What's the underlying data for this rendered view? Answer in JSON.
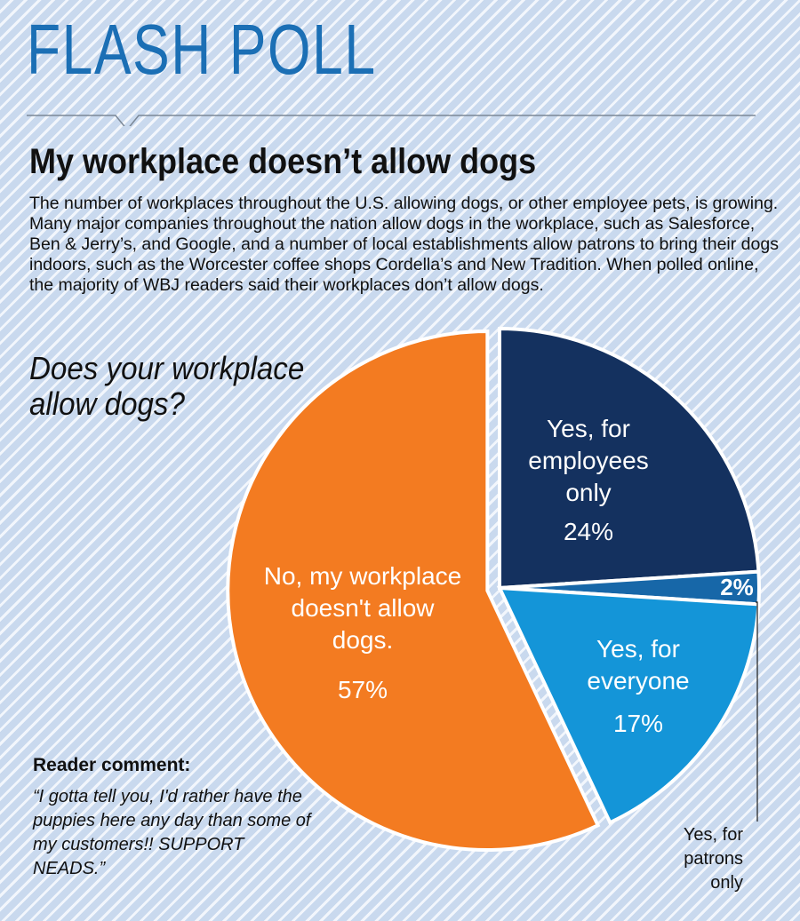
{
  "kicker": "FLASH POLL",
  "headline": "My workplace doesn’t allow dogs",
  "intro": "The number of workplaces throughout the U.S. allowing dogs, or other employee pets, is growing. Many major companies throughout the nation allow dogs in the workplace, such as Salesforce, Ben & Jerry’s, and Google, and a number of local establishments allow patrons to bring their dogs indoors, such as the Worcester coffee shops Cordella’s and New Tradition. When polled online, the majority of WBJ readers said their workplaces don’t allow dogs.",
  "comment": {
    "heading": "Reader comment:",
    "text": "“I gotta tell you, I'd rather have the puppies here any day than some of my customers!! SUPPORT NEADS.”"
  },
  "colors": {
    "orange": "#f37b21",
    "navy": "#14315f",
    "mid_blue": "#1767a8",
    "light_blue": "#1495d8"
  },
  "chart_data": {
    "type": "pie",
    "title": "Does your workplace allow dogs?",
    "slices": [
      {
        "label": "Yes, for employees only",
        "label_lines": [
          "Yes, for",
          "employees",
          "only"
        ],
        "value": 24,
        "value_label": "24%",
        "color": "#14315f"
      },
      {
        "label": "Yes, for patrons only",
        "label_lines": [
          "Yes, for",
          "patrons",
          "only"
        ],
        "value": 2,
        "value_label": "2%",
        "color": "#1767a8"
      },
      {
        "label": "Yes, for everyone",
        "label_lines": [
          "Yes, for",
          "everyone"
        ],
        "value": 17,
        "value_label": "17%",
        "color": "#1495d8"
      },
      {
        "label": "No, my workplace doesn't allow dogs.",
        "label_lines": [
          "No, my workplace",
          "doesn't allow",
          "dogs."
        ],
        "value": 57,
        "value_label": "57%",
        "color": "#f37b21"
      }
    ]
  }
}
